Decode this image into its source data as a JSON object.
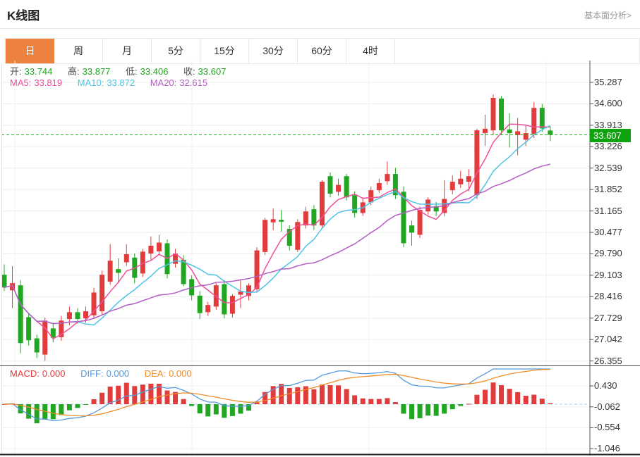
{
  "header": {
    "title": "K线图",
    "link": "基本面分析>"
  },
  "tabs": [
    {
      "label": "日",
      "active": true
    },
    {
      "label": "周",
      "active": false
    },
    {
      "label": "月",
      "active": false
    },
    {
      "label": "5分",
      "active": false
    },
    {
      "label": "15分",
      "active": false
    },
    {
      "label": "30分",
      "active": false
    },
    {
      "label": "60分",
      "active": false
    },
    {
      "label": "4时",
      "active": false
    }
  ],
  "legend": {
    "ohlc": [
      {
        "label": "开:",
        "value": "33.744"
      },
      {
        "label": "高:",
        "value": "33.877"
      },
      {
        "label": "低:",
        "value": "33.406"
      },
      {
        "label": "收:",
        "value": "33.607"
      }
    ],
    "ma": [
      {
        "label": "MA5:",
        "value": "33.819"
      },
      {
        "label": "MA10:",
        "value": "33.872"
      },
      {
        "label": "MA20:",
        "value": "32.615"
      }
    ]
  },
  "macd_legend": [
    {
      "label": "MACD:",
      "value": "0.000"
    },
    {
      "label": "DIFF:",
      "value": "0.000"
    },
    {
      "label": "DEA:",
      "value": "0.000"
    }
  ],
  "chart_data": {
    "type": "candlestick",
    "period": "日",
    "current_price": "33.607",
    "y_axis_labels": [
      "35.287",
      "34.600",
      "33.913",
      "33.226",
      "32.539",
      "31.852",
      "31.165",
      "30.477",
      "29.790",
      "29.103",
      "28.416",
      "27.729",
      "27.042",
      "26.355"
    ],
    "macd_axis_labels": [
      "0.430",
      "-0.062",
      "-0.554",
      "-1.046"
    ],
    "ohlc_today": {
      "open": 33.744,
      "high": 33.877,
      "low": 33.406,
      "close": 33.607
    },
    "ma_values": {
      "ma5": 33.819,
      "ma10": 33.872,
      "ma20": 32.615
    },
    "macd_values": {
      "macd": 0.0,
      "diff": 0.0,
      "dea": 0.0
    },
    "colors": {
      "up": "#e23b3b",
      "down": "#21a621",
      "ma5": "#f0509a",
      "ma10": "#4fc3e8",
      "ma20": "#b45ec4",
      "macd": "#e23b3b",
      "diff": "#5599dd",
      "dea": "#f08c28",
      "badge": "#0fa30f",
      "price_line": "#18a818",
      "tab_active": "#ec823d"
    },
    "candles": [
      [
        29.12,
        29.45,
        28.6,
        28.71
      ],
      [
        28.62,
        29.4,
        28.05,
        28.85
      ],
      [
        28.78,
        28.95,
        26.6,
        26.93
      ],
      [
        27.76,
        27.9,
        26.85,
        27.02
      ],
      [
        27.08,
        27.2,
        26.45,
        26.63
      ],
      [
        26.56,
        27.75,
        26.36,
        27.65
      ],
      [
        27.4,
        27.55,
        26.95,
        27.1
      ],
      [
        27.12,
        27.8,
        27.0,
        27.65
      ],
      [
        27.7,
        28.1,
        27.5,
        27.92
      ],
      [
        27.92,
        28.05,
        27.55,
        27.7
      ],
      [
        27.72,
        28.1,
        27.58,
        27.95
      ],
      [
        27.82,
        28.7,
        27.7,
        28.55
      ],
      [
        27.95,
        29.25,
        27.85,
        29.12
      ],
      [
        28.9,
        30.1,
        28.8,
        29.57
      ],
      [
        29.3,
        29.65,
        28.85,
        29.18
      ],
      [
        29.52,
        30.1,
        29.4,
        29.78
      ],
      [
        29.67,
        29.8,
        28.85,
        29.02
      ],
      [
        29.16,
        29.95,
        29.05,
        29.86
      ],
      [
        29.8,
        30.35,
        29.6,
        30.05
      ],
      [
        29.87,
        30.4,
        29.75,
        30.15
      ],
      [
        30.13,
        30.25,
        29.0,
        29.14
      ],
      [
        29.47,
        29.95,
        29.35,
        29.8
      ],
      [
        29.6,
        29.75,
        28.75,
        28.82
      ],
      [
        28.98,
        29.1,
        28.3,
        28.46
      ],
      [
        28.45,
        28.6,
        27.7,
        27.89
      ],
      [
        27.92,
        28.25,
        27.8,
        28.15
      ],
      [
        28.1,
        28.85,
        28.0,
        28.78
      ],
      [
        28.82,
        28.95,
        27.72,
        27.85
      ],
      [
        27.87,
        28.5,
        27.75,
        28.44
      ],
      [
        28.48,
        28.95,
        28.05,
        28.58
      ],
      [
        28.44,
        28.85,
        28.3,
        28.78
      ],
      [
        28.66,
        30.0,
        28.55,
        29.9
      ],
      [
        29.85,
        30.95,
        29.75,
        30.88
      ],
      [
        30.8,
        31.25,
        30.55,
        30.9
      ],
      [
        30.88,
        31.2,
        30.5,
        30.82
      ],
      [
        30.59,
        30.7,
        29.9,
        30.05
      ],
      [
        29.92,
        30.9,
        29.85,
        30.81
      ],
      [
        30.7,
        31.3,
        30.6,
        31.15
      ],
      [
        31.22,
        31.35,
        30.55,
        30.7
      ],
      [
        30.7,
        32.15,
        30.6,
        32.1
      ],
      [
        32.28,
        32.4,
        31.6,
        31.72
      ],
      [
        31.78,
        32.2,
        31.65,
        32.0
      ],
      [
        32.28,
        32.35,
        31.5,
        31.6
      ],
      [
        31.67,
        31.8,
        30.95,
        31.1
      ],
      [
        31.1,
        31.6,
        31.0,
        31.44
      ],
      [
        31.44,
        31.95,
        31.35,
        31.83
      ],
      [
        31.83,
        32.2,
        31.75,
        32.06
      ],
      [
        32.12,
        32.75,
        32.0,
        32.35
      ],
      [
        32.35,
        32.55,
        31.55,
        31.67
      ],
      [
        31.78,
        31.95,
        30.0,
        30.13
      ],
      [
        30.7,
        30.85,
        30.05,
        30.47
      ],
      [
        30.4,
        31.3,
        30.3,
        31.2
      ],
      [
        31.15,
        31.6,
        31.05,
        31.53
      ],
      [
        31.32,
        31.45,
        31.0,
        31.15
      ],
      [
        31.1,
        32.15,
        31.0,
        31.55
      ],
      [
        31.83,
        32.3,
        31.7,
        32.1
      ],
      [
        32.02,
        32.45,
        31.9,
        32.2
      ],
      [
        32.1,
        32.5,
        31.8,
        32.28
      ],
      [
        31.67,
        33.8,
        31.55,
        33.75
      ],
      [
        33.66,
        34.25,
        33.25,
        33.8
      ],
      [
        33.75,
        34.9,
        33.6,
        34.79
      ],
      [
        34.77,
        34.85,
        33.6,
        33.75
      ],
      [
        33.78,
        34.3,
        33.2,
        33.66
      ],
      [
        33.6,
        34.15,
        32.95,
        33.72
      ],
      [
        33.45,
        33.9,
        33.25,
        33.66
      ],
      [
        33.63,
        34.65,
        33.5,
        34.47
      ],
      [
        34.47,
        34.6,
        33.7,
        33.81
      ],
      [
        33.744,
        33.877,
        33.406,
        33.607
      ]
    ]
  }
}
